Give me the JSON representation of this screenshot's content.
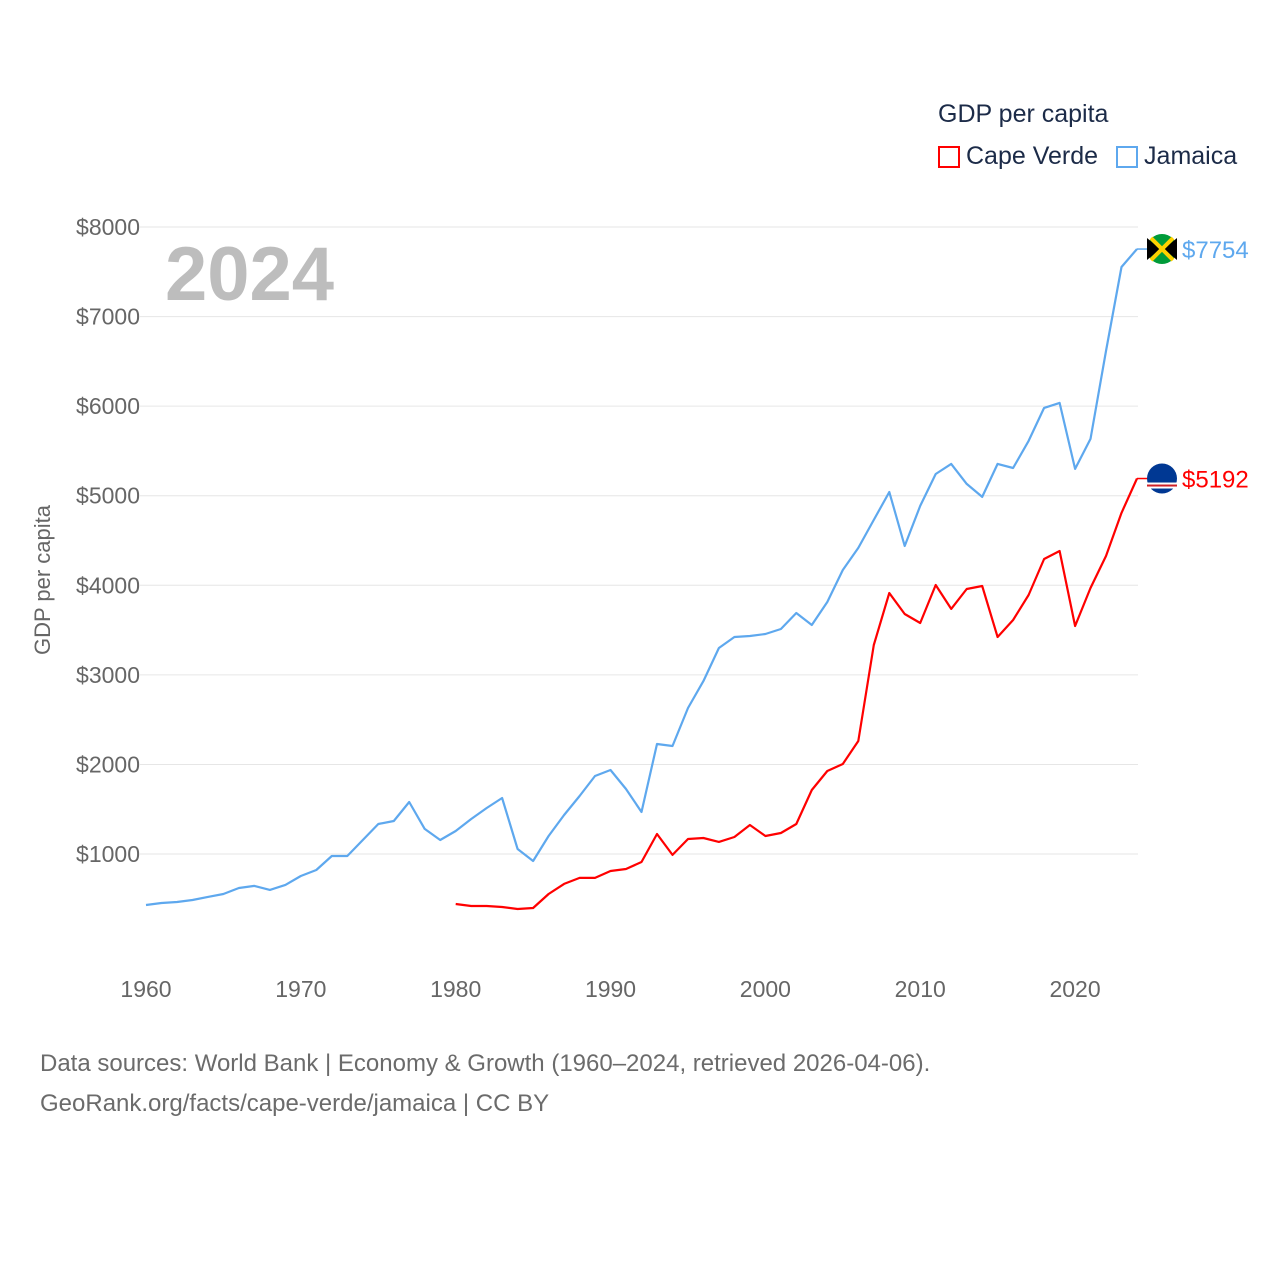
{
  "legend": {
    "title": "GDP per capita",
    "items": [
      {
        "label": "Cape Verde",
        "color": "#ff0000"
      },
      {
        "label": "Jamaica",
        "color": "#5ea8ee"
      }
    ]
  },
  "footer": {
    "line1": "Data sources: World Bank | Economy & Growth (1960–2024, retrieved 2026-04-06).",
    "line2": "GeoRank.org/facts/cape-verde/jamaica | CC BY"
  },
  "chart_data": {
    "type": "line",
    "title": "GDP per capita",
    "year_label": "2024",
    "xlabel": "",
    "ylabel": "GDP per capita",
    "xlim": [
      1960,
      2024
    ],
    "ylim": [
      0,
      8000
    ],
    "x_ticks": [
      1960,
      1970,
      1980,
      1990,
      2000,
      2010,
      2020
    ],
    "y_ticks": [
      {
        "value": 1000,
        "label": "$1000"
      },
      {
        "value": 2000,
        "label": "$2000"
      },
      {
        "value": 3000,
        "label": "$3000"
      },
      {
        "value": 4000,
        "label": "$4000"
      },
      {
        "value": 5000,
        "label": "$5000"
      },
      {
        "value": 6000,
        "label": "$6000"
      },
      {
        "value": 7000,
        "label": "$7000"
      },
      {
        "value": 8000,
        "label": "$8000"
      }
    ],
    "grid": true,
    "legend_position": "top-right",
    "series": [
      {
        "name": "Jamaica",
        "color": "#5ea8ee",
        "end_label": "$7754",
        "start_year": 1960,
        "values": [
          431,
          453,
          464,
          487,
          521,
          554,
          621,
          644,
          599,
          655,
          755,
          822,
          978,
          978,
          1157,
          1335,
          1369,
          1581,
          1280,
          1157,
          1257,
          1391,
          1514,
          1626,
          1056,
          922,
          1201,
          1436,
          1648,
          1871,
          1938,
          1726,
          1469,
          2228,
          2206,
          2630,
          2931,
          3300,
          3423,
          3434,
          3456,
          3512,
          3691,
          3557,
          3814,
          4171,
          4417,
          4730,
          5042,
          4439,
          4886,
          5243,
          5355,
          5132,
          4987,
          5355,
          5310,
          5612,
          5980,
          6036,
          5299,
          5634,
          6616,
          7554,
          7754
        ]
      },
      {
        "name": "Cape Verde",
        "color": "#ff0000",
        "end_label": "$5192",
        "start_year": 1980,
        "values": [
          442,
          420,
          420,
          409,
          386,
          397,
          554,
          666,
          733,
          733,
          811,
          833,
          911,
          1224,
          990,
          1168,
          1179,
          1135,
          1190,
          1324,
          1201,
          1235,
          1335,
          1715,
          1927,
          2005,
          2262,
          3334,
          3914,
          3680,
          3579,
          4003,
          3736,
          3959,
          3992,
          3423,
          3613,
          3892,
          4294,
          4383,
          3546,
          3970,
          4327,
          4808,
          5192
        ]
      }
    ]
  }
}
